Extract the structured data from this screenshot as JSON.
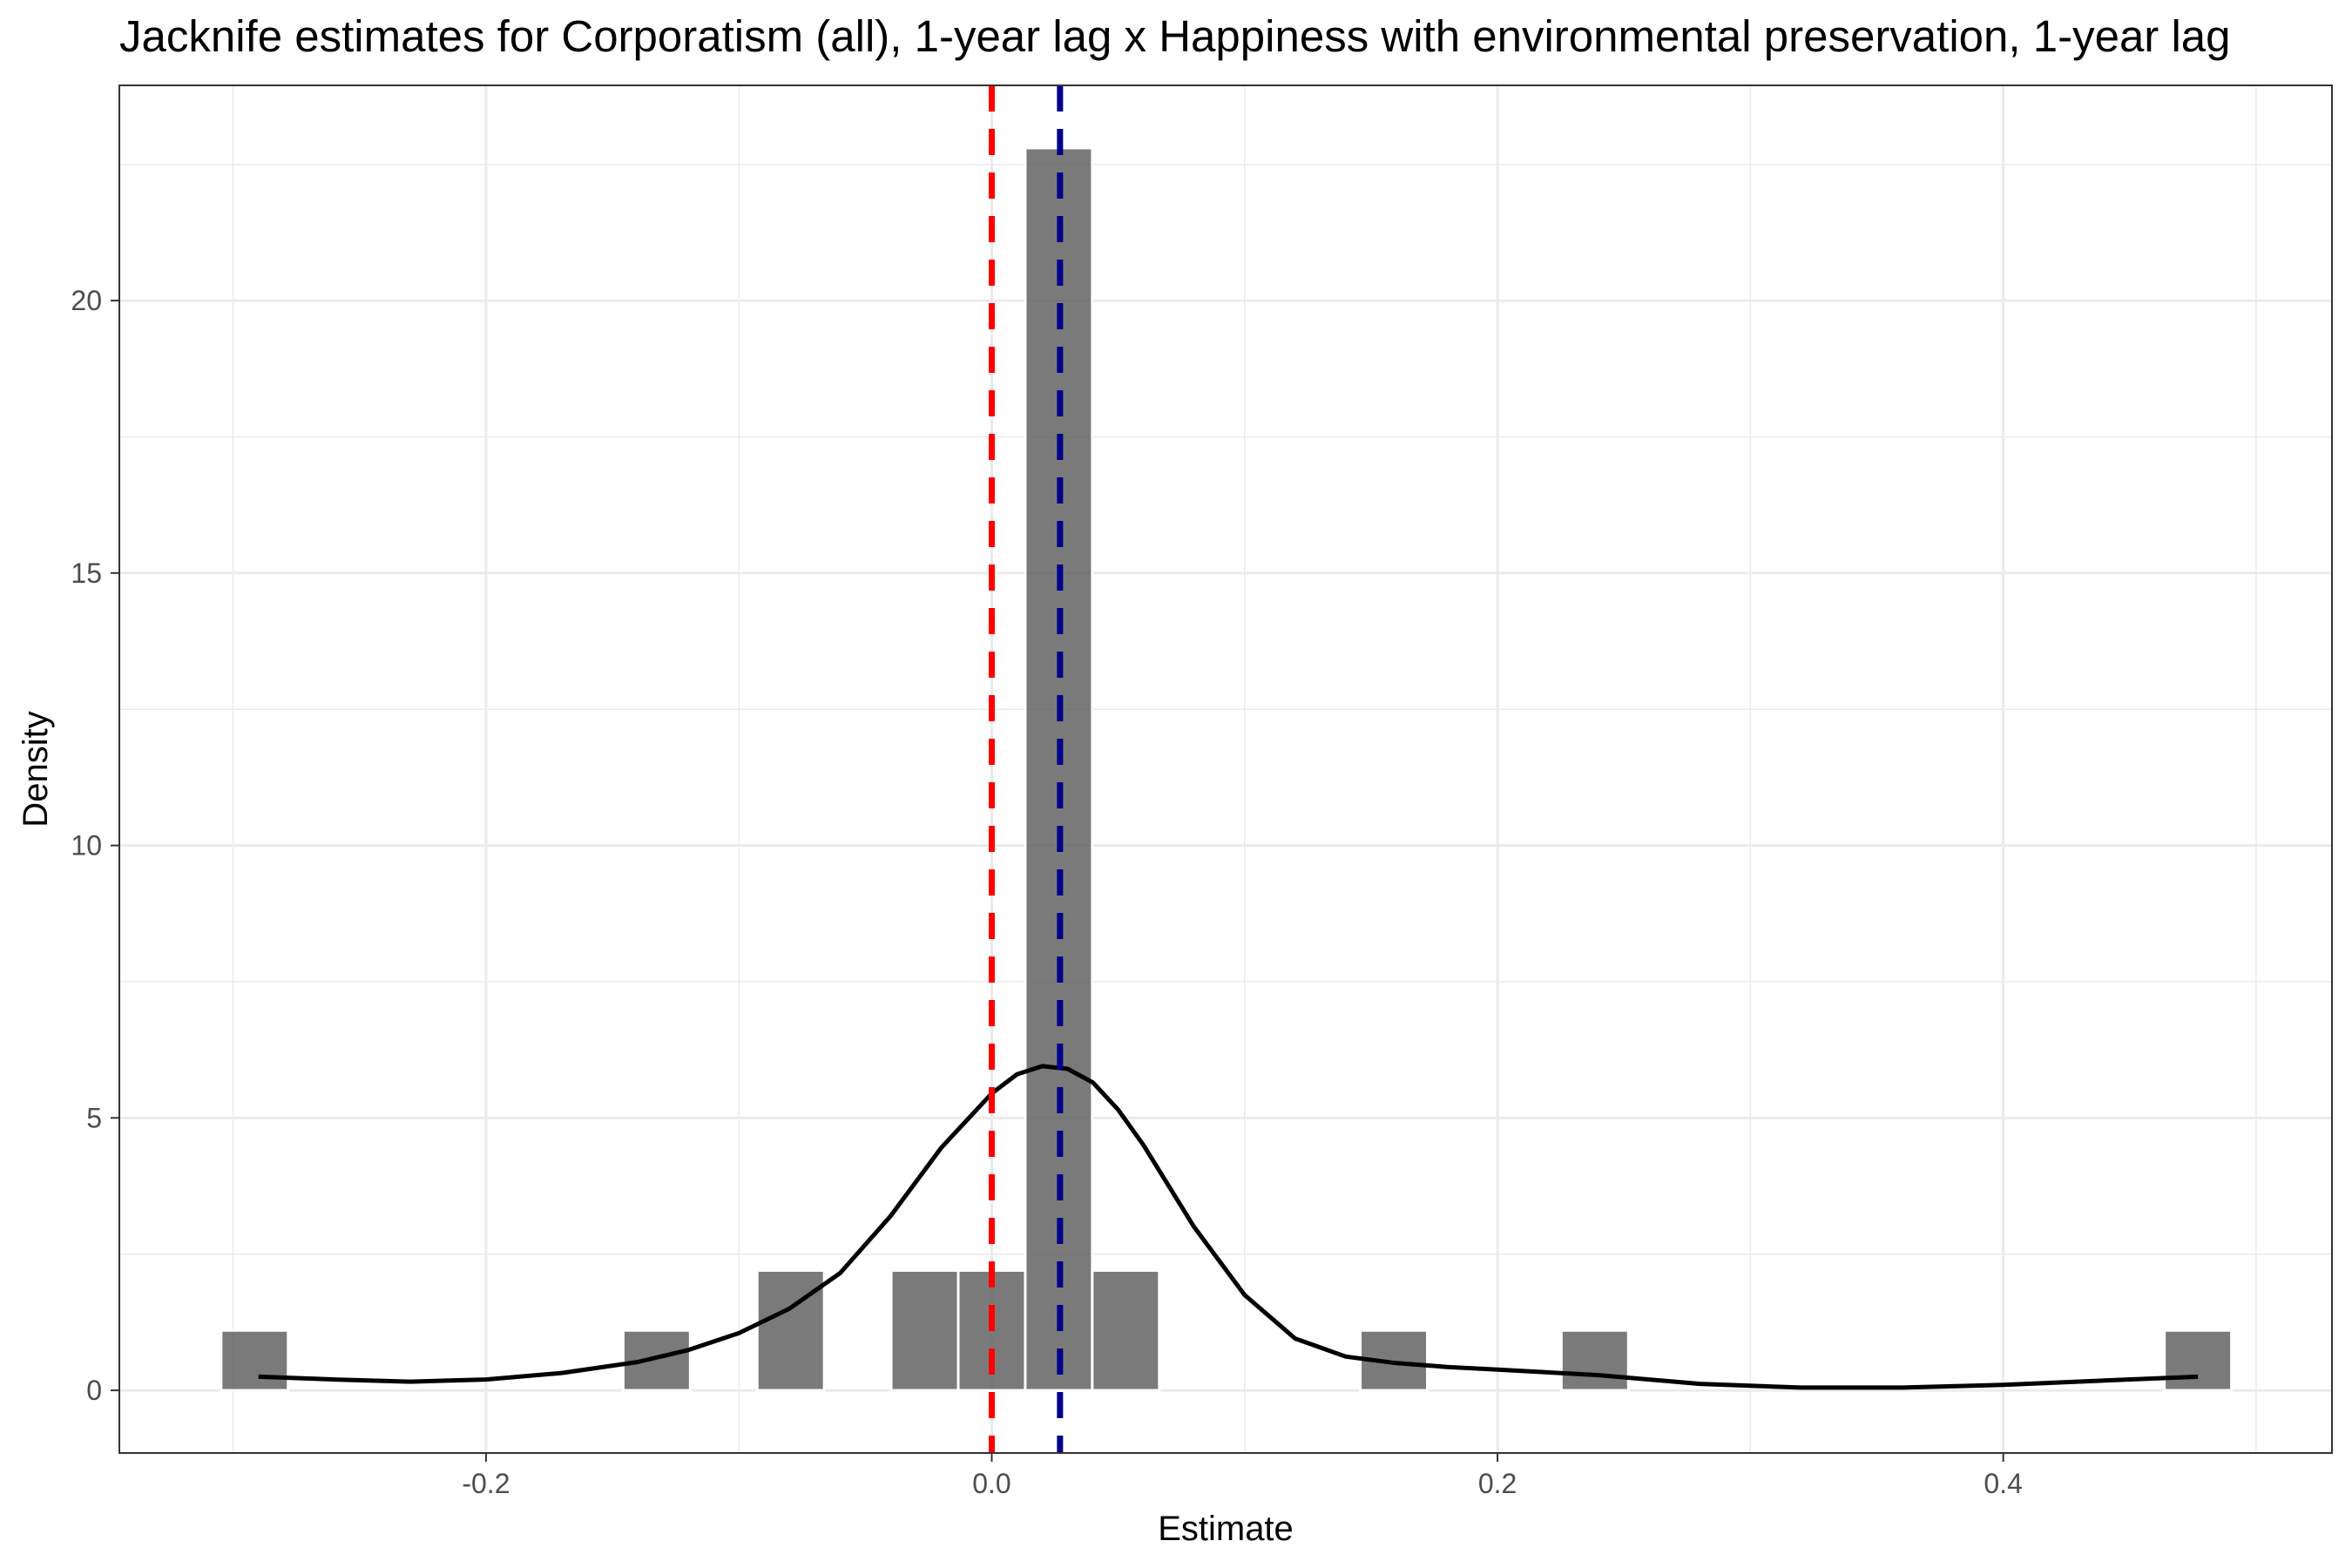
{
  "chart_data": {
    "type": "histogram",
    "title": "Jacknife estimates for Corporatism (all), 1-year lag x Happiness with environmental preservation, 1-year lag",
    "xlabel": "Estimate",
    "ylabel": "Density",
    "xlim": [
      -0.345,
      0.53
    ],
    "ylim": [
      -1.15,
      23.95
    ],
    "x_ticks": [
      -0.2,
      0.0,
      0.2,
      0.4
    ],
    "x_tick_labels": [
      "-0.2",
      "0.0",
      "0.2",
      "0.4"
    ],
    "y_ticks": [
      0,
      5,
      10,
      15,
      20
    ],
    "y_tick_labels": [
      "0",
      "5",
      "10",
      "15",
      "20"
    ],
    "grid": true,
    "bin_width": 0.0265,
    "bins": [
      {
        "center": -0.2915,
        "density": 1.1
      },
      {
        "center": -0.1325,
        "density": 1.1
      },
      {
        "center": -0.0795,
        "density": 2.2
      },
      {
        "center": -0.0265,
        "density": 2.2
      },
      {
        "center": 0.0,
        "density": 2.2
      },
      {
        "center": 0.0265,
        "density": 22.8
      },
      {
        "center": 0.053,
        "density": 2.2
      },
      {
        "center": 0.159,
        "density": 1.1
      },
      {
        "center": 0.2385,
        "density": 1.1
      },
      {
        "center": 0.477,
        "density": 1.1
      }
    ],
    "density_curve": {
      "x": [
        -0.29,
        -0.26,
        -0.23,
        -0.2,
        -0.17,
        -0.14,
        -0.12,
        -0.1,
        -0.08,
        -0.06,
        -0.04,
        -0.02,
        0.0,
        0.01,
        0.02,
        0.03,
        0.04,
        0.05,
        0.06,
        0.08,
        0.1,
        0.12,
        0.14,
        0.16,
        0.18,
        0.2,
        0.24,
        0.28,
        0.32,
        0.36,
        0.4,
        0.44,
        0.477
      ],
      "y": [
        0.25,
        0.2,
        0.16,
        0.2,
        0.32,
        0.52,
        0.74,
        1.05,
        1.5,
        2.15,
        3.2,
        4.45,
        5.45,
        5.8,
        5.95,
        5.9,
        5.65,
        5.15,
        4.5,
        3.0,
        1.75,
        0.95,
        0.62,
        0.5,
        0.43,
        0.38,
        0.28,
        0.12,
        0.05,
        0.05,
        0.1,
        0.18,
        0.25
      ]
    },
    "reference_lines": [
      {
        "name": "zero",
        "x": 0.0,
        "color": "#ff0000",
        "style": "dashed"
      },
      {
        "name": "mean-estimate",
        "x": 0.027,
        "color": "#00008b",
        "style": "dashed"
      }
    ],
    "bar_color": "#595959",
    "curve_color": "#000000"
  }
}
